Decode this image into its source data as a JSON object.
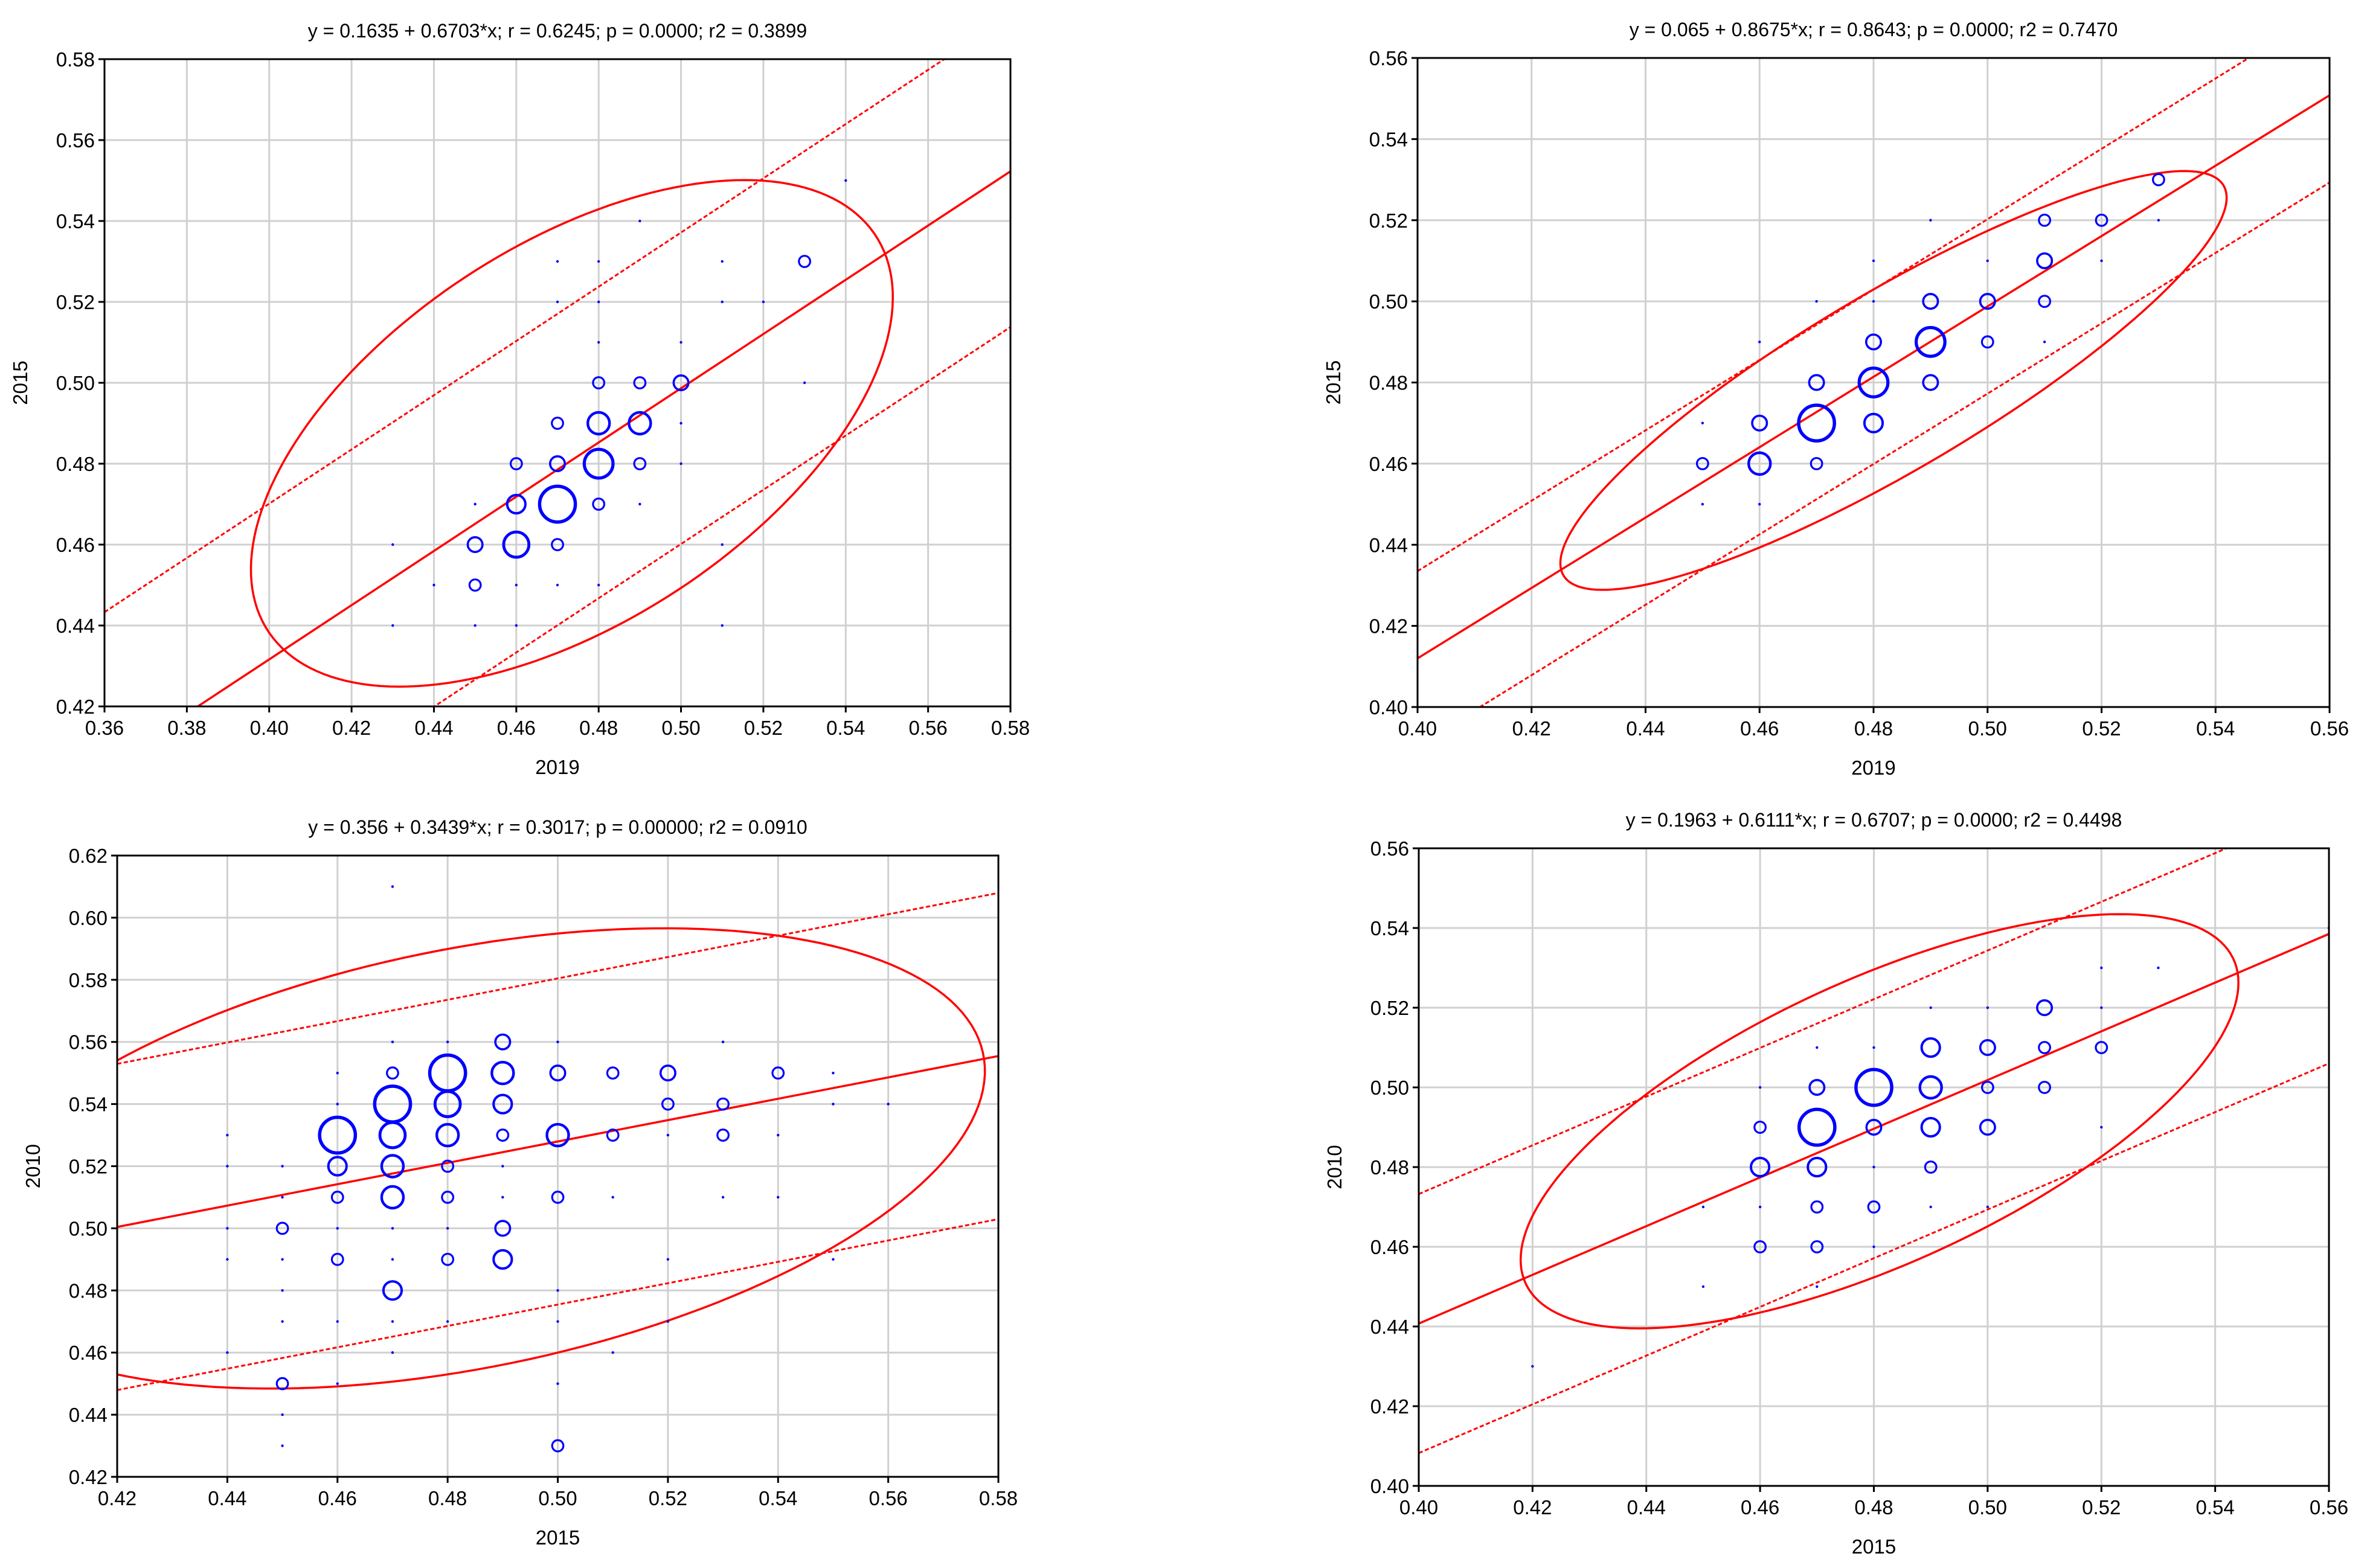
{
  "colors": {
    "points": "#0000ff",
    "fit": "#ff0000",
    "grid": "#d0d0d0"
  },
  "chart_data": [
    {
      "type": "scatter",
      "title": "y = 0.1635 + 0.6703*x;  r = 0.6245; p = 0.0000; r2 = 0.3899",
      "xlabel": "2019",
      "ylabel": "2015",
      "xlim": [
        0.36,
        0.58
      ],
      "ylim": [
        0.42,
        0.58
      ],
      "xticks": [
        "0.36",
        "0.38",
        "0.40",
        "0.42",
        "0.44",
        "0.46",
        "0.48",
        "0.50",
        "0.52",
        "0.54",
        "0.56",
        "0.58"
      ],
      "yticks": [
        "0.42",
        "0.44",
        "0.46",
        "0.48",
        "0.50",
        "0.52",
        "0.54",
        "0.56",
        "0.58"
      ],
      "regression": {
        "intercept": 0.1635,
        "slope": 0.6703
      },
      "prediction_band_offset": 0.0385,
      "ellipse": {
        "cx": 0.4735,
        "cy": 0.4875,
        "rx": 0.0885,
        "ry": 0.0465,
        "angle": 0.6703
      },
      "points": [
        {
          "x": 0.43,
          "y": 0.46,
          "n": 1
        },
        {
          "x": 0.43,
          "y": 0.44,
          "n": 1
        },
        {
          "x": 0.44,
          "y": 0.45,
          "n": 1
        },
        {
          "x": 0.45,
          "y": 0.47,
          "n": 1
        },
        {
          "x": 0.45,
          "y": 0.46,
          "n": 3
        },
        {
          "x": 0.45,
          "y": 0.45,
          "n": 2
        },
        {
          "x": 0.45,
          "y": 0.44,
          "n": 1
        },
        {
          "x": 0.46,
          "y": 0.48,
          "n": 2
        },
        {
          "x": 0.46,
          "y": 0.47,
          "n": 4
        },
        {
          "x": 0.46,
          "y": 0.46,
          "n": 6
        },
        {
          "x": 0.46,
          "y": 0.44,
          "n": 1
        },
        {
          "x": 0.46,
          "y": 0.45,
          "n": 1
        },
        {
          "x": 0.47,
          "y": 0.49,
          "n": 2
        },
        {
          "x": 0.47,
          "y": 0.48,
          "n": 3
        },
        {
          "x": 0.47,
          "y": 0.47,
          "n": 9
        },
        {
          "x": 0.47,
          "y": 0.46,
          "n": 2
        },
        {
          "x": 0.47,
          "y": 0.45,
          "n": 1
        },
        {
          "x": 0.47,
          "y": 0.52,
          "n": 1
        },
        {
          "x": 0.47,
          "y": 0.53,
          "n": 1
        },
        {
          "x": 0.48,
          "y": 0.5,
          "n": 2
        },
        {
          "x": 0.48,
          "y": 0.49,
          "n": 5
        },
        {
          "x": 0.48,
          "y": 0.48,
          "n": 7
        },
        {
          "x": 0.48,
          "y": 0.47,
          "n": 2
        },
        {
          "x": 0.48,
          "y": 0.51,
          "n": 1
        },
        {
          "x": 0.48,
          "y": 0.52,
          "n": 1
        },
        {
          "x": 0.48,
          "y": 0.53,
          "n": 1
        },
        {
          "x": 0.48,
          "y": 0.45,
          "n": 1
        },
        {
          "x": 0.49,
          "y": 0.5,
          "n": 2
        },
        {
          "x": 0.49,
          "y": 0.49,
          "n": 5
        },
        {
          "x": 0.49,
          "y": 0.48,
          "n": 2
        },
        {
          "x": 0.49,
          "y": 0.54,
          "n": 1
        },
        {
          "x": 0.49,
          "y": 0.47,
          "n": 1
        },
        {
          "x": 0.5,
          "y": 0.5,
          "n": 3
        },
        {
          "x": 0.5,
          "y": 0.51,
          "n": 1
        },
        {
          "x": 0.5,
          "y": 0.49,
          "n": 1
        },
        {
          "x": 0.5,
          "y": 0.48,
          "n": 1
        },
        {
          "x": 0.51,
          "y": 0.52,
          "n": 1
        },
        {
          "x": 0.51,
          "y": 0.53,
          "n": 1
        },
        {
          "x": 0.51,
          "y": 0.46,
          "n": 1
        },
        {
          "x": 0.51,
          "y": 0.44,
          "n": 1
        },
        {
          "x": 0.52,
          "y": 0.52,
          "n": 1
        },
        {
          "x": 0.53,
          "y": 0.53,
          "n": 2
        },
        {
          "x": 0.53,
          "y": 0.5,
          "n": 1
        },
        {
          "x": 0.54,
          "y": 0.55,
          "n": 1
        }
      ]
    },
    {
      "type": "scatter",
      "title": "y = 0.065 + 0.8675*x;  r = 0.8643; p = 0.0000; r2 = 0.7470",
      "xlabel": "2019",
      "ylabel": "2015",
      "xlim": [
        0.4,
        0.56
      ],
      "ylim": [
        0.4,
        0.56
      ],
      "xticks": [
        "0.40",
        "0.42",
        "0.44",
        "0.46",
        "0.48",
        "0.50",
        "0.52",
        "0.54",
        "0.56"
      ],
      "yticks": [
        "0.40",
        "0.42",
        "0.44",
        "0.46",
        "0.48",
        "0.50",
        "0.52",
        "0.54",
        "0.56"
      ],
      "regression": {
        "intercept": 0.065,
        "slope": 0.8675
      },
      "prediction_band_offset": 0.0215,
      "ellipse": {
        "cx": 0.4835,
        "cy": 0.4805,
        "rx": 0.0755,
        "ry": 0.0195,
        "angle": 0.8675
      },
      "points": [
        {
          "x": 0.45,
          "y": 0.46,
          "n": 2
        },
        {
          "x": 0.45,
          "y": 0.45,
          "n": 1
        },
        {
          "x": 0.45,
          "y": 0.47,
          "n": 1
        },
        {
          "x": 0.46,
          "y": 0.47,
          "n": 3
        },
        {
          "x": 0.46,
          "y": 0.46,
          "n": 5
        },
        {
          "x": 0.46,
          "y": 0.49,
          "n": 1
        },
        {
          "x": 0.46,
          "y": 0.45,
          "n": 1
        },
        {
          "x": 0.47,
          "y": 0.48,
          "n": 3
        },
        {
          "x": 0.47,
          "y": 0.47,
          "n": 9
        },
        {
          "x": 0.47,
          "y": 0.46,
          "n": 2
        },
        {
          "x": 0.47,
          "y": 0.5,
          "n": 1
        },
        {
          "x": 0.48,
          "y": 0.49,
          "n": 3
        },
        {
          "x": 0.48,
          "y": 0.48,
          "n": 7
        },
        {
          "x": 0.48,
          "y": 0.47,
          "n": 4
        },
        {
          "x": 0.48,
          "y": 0.51,
          "n": 1
        },
        {
          "x": 0.48,
          "y": 0.5,
          "n": 1
        },
        {
          "x": 0.49,
          "y": 0.5,
          "n": 3
        },
        {
          "x": 0.49,
          "y": 0.49,
          "n": 7
        },
        {
          "x": 0.49,
          "y": 0.48,
          "n": 3
        },
        {
          "x": 0.49,
          "y": 0.52,
          "n": 1
        },
        {
          "x": 0.5,
          "y": 0.5,
          "n": 3
        },
        {
          "x": 0.5,
          "y": 0.49,
          "n": 2
        },
        {
          "x": 0.5,
          "y": 0.51,
          "n": 1
        },
        {
          "x": 0.51,
          "y": 0.51,
          "n": 3
        },
        {
          "x": 0.51,
          "y": 0.52,
          "n": 2
        },
        {
          "x": 0.51,
          "y": 0.5,
          "n": 2
        },
        {
          "x": 0.51,
          "y": 0.49,
          "n": 1
        },
        {
          "x": 0.52,
          "y": 0.52,
          "n": 2
        },
        {
          "x": 0.52,
          "y": 0.51,
          "n": 1
        },
        {
          "x": 0.53,
          "y": 0.53,
          "n": 2
        },
        {
          "x": 0.53,
          "y": 0.52,
          "n": 1
        }
      ]
    },
    {
      "type": "scatter",
      "title": "y = 0.356 + 0.3439*x;  r = 0.3017; p = 0.00000; r2 = 0.0910",
      "xlabel": "2015",
      "ylabel": "2010",
      "xlim": [
        0.42,
        0.58
      ],
      "ylim": [
        0.42,
        0.62
      ],
      "xticks": [
        "0.42",
        "0.44",
        "0.46",
        "0.48",
        "0.50",
        "0.52",
        "0.54",
        "0.56",
        "0.58"
      ],
      "yticks": [
        "0.42",
        "0.44",
        "0.46",
        "0.48",
        "0.50",
        "0.52",
        "0.54",
        "0.56",
        "0.58",
        "0.60",
        "0.62"
      ],
      "regression": {
        "intercept": 0.356,
        "slope": 0.3439
      },
      "prediction_band_offset": 0.0525,
      "ellipse": {
        "cx": 0.4835,
        "cy": 0.5225,
        "rx": 0.1015,
        "ry": 0.0635,
        "angle": 0.55
      },
      "points": [
        {
          "x": 0.44,
          "y": 0.53,
          "n": 1
        },
        {
          "x": 0.44,
          "y": 0.52,
          "n": 1
        },
        {
          "x": 0.44,
          "y": 0.5,
          "n": 1
        },
        {
          "x": 0.44,
          "y": 0.49,
          "n": 1
        },
        {
          "x": 0.44,
          "y": 0.46,
          "n": 1
        },
        {
          "x": 0.45,
          "y": 0.52,
          "n": 1
        },
        {
          "x": 0.45,
          "y": 0.51,
          "n": 1
        },
        {
          "x": 0.45,
          "y": 0.5,
          "n": 2
        },
        {
          "x": 0.45,
          "y": 0.49,
          "n": 1
        },
        {
          "x": 0.45,
          "y": 0.48,
          "n": 1
        },
        {
          "x": 0.45,
          "y": 0.47,
          "n": 1
        },
        {
          "x": 0.45,
          "y": 0.45,
          "n": 2
        },
        {
          "x": 0.45,
          "y": 0.44,
          "n": 1
        },
        {
          "x": 0.45,
          "y": 0.43,
          "n": 1
        },
        {
          "x": 0.46,
          "y": 0.53,
          "n": 9
        },
        {
          "x": 0.46,
          "y": 0.52,
          "n": 4
        },
        {
          "x": 0.46,
          "y": 0.51,
          "n": 2
        },
        {
          "x": 0.46,
          "y": 0.5,
          "n": 1
        },
        {
          "x": 0.46,
          "y": 0.49,
          "n": 2
        },
        {
          "x": 0.46,
          "y": 0.47,
          "n": 1
        },
        {
          "x": 0.46,
          "y": 0.45,
          "n": 1
        },
        {
          "x": 0.46,
          "y": 0.54,
          "n": 1
        },
        {
          "x": 0.46,
          "y": 0.55,
          "n": 1
        },
        {
          "x": 0.47,
          "y": 0.54,
          "n": 9
        },
        {
          "x": 0.47,
          "y": 0.53,
          "n": 6
        },
        {
          "x": 0.47,
          "y": 0.52,
          "n": 5
        },
        {
          "x": 0.47,
          "y": 0.51,
          "n": 5
        },
        {
          "x": 0.47,
          "y": 0.55,
          "n": 2
        },
        {
          "x": 0.47,
          "y": 0.48,
          "n": 4
        },
        {
          "x": 0.47,
          "y": 0.49,
          "n": 1
        },
        {
          "x": 0.47,
          "y": 0.5,
          "n": 1
        },
        {
          "x": 0.47,
          "y": 0.47,
          "n": 1
        },
        {
          "x": 0.47,
          "y": 0.46,
          "n": 1
        },
        {
          "x": 0.47,
          "y": 0.61,
          "n": 1
        },
        {
          "x": 0.47,
          "y": 0.56,
          "n": 1
        },
        {
          "x": 0.48,
          "y": 0.55,
          "n": 9
        },
        {
          "x": 0.48,
          "y": 0.54,
          "n": 6
        },
        {
          "x": 0.48,
          "y": 0.53,
          "n": 5
        },
        {
          "x": 0.48,
          "y": 0.52,
          "n": 2
        },
        {
          "x": 0.48,
          "y": 0.51,
          "n": 2
        },
        {
          "x": 0.48,
          "y": 0.49,
          "n": 2
        },
        {
          "x": 0.48,
          "y": 0.5,
          "n": 1
        },
        {
          "x": 0.48,
          "y": 0.56,
          "n": 1
        },
        {
          "x": 0.48,
          "y": 0.47,
          "n": 1
        },
        {
          "x": 0.49,
          "y": 0.56,
          "n": 3
        },
        {
          "x": 0.49,
          "y": 0.55,
          "n": 5
        },
        {
          "x": 0.49,
          "y": 0.54,
          "n": 4
        },
        {
          "x": 0.49,
          "y": 0.53,
          "n": 2
        },
        {
          "x": 0.49,
          "y": 0.5,
          "n": 3
        },
        {
          "x": 0.49,
          "y": 0.49,
          "n": 4
        },
        {
          "x": 0.49,
          "y": 0.52,
          "n": 1
        },
        {
          "x": 0.49,
          "y": 0.51,
          "n": 1
        },
        {
          "x": 0.5,
          "y": 0.55,
          "n": 3
        },
        {
          "x": 0.5,
          "y": 0.53,
          "n": 5
        },
        {
          "x": 0.5,
          "y": 0.51,
          "n": 2
        },
        {
          "x": 0.5,
          "y": 0.48,
          "n": 1
        },
        {
          "x": 0.5,
          "y": 0.47,
          "n": 1
        },
        {
          "x": 0.5,
          "y": 0.45,
          "n": 1
        },
        {
          "x": 0.5,
          "y": 0.43,
          "n": 2
        },
        {
          "x": 0.5,
          "y": 0.56,
          "n": 1
        },
        {
          "x": 0.51,
          "y": 0.55,
          "n": 2
        },
        {
          "x": 0.51,
          "y": 0.53,
          "n": 2
        },
        {
          "x": 0.51,
          "y": 0.51,
          "n": 1
        },
        {
          "x": 0.51,
          "y": 0.46,
          "n": 1
        },
        {
          "x": 0.52,
          "y": 0.55,
          "n": 3
        },
        {
          "x": 0.52,
          "y": 0.54,
          "n": 2
        },
        {
          "x": 0.52,
          "y": 0.53,
          "n": 1
        },
        {
          "x": 0.52,
          "y": 0.49,
          "n": 1
        },
        {
          "x": 0.52,
          "y": 0.47,
          "n": 1
        },
        {
          "x": 0.53,
          "y": 0.56,
          "n": 1
        },
        {
          "x": 0.53,
          "y": 0.54,
          "n": 2
        },
        {
          "x": 0.53,
          "y": 0.53,
          "n": 2
        },
        {
          "x": 0.53,
          "y": 0.51,
          "n": 1
        },
        {
          "x": 0.54,
          "y": 0.55,
          "n": 2
        },
        {
          "x": 0.54,
          "y": 0.53,
          "n": 1
        },
        {
          "x": 0.54,
          "y": 0.51,
          "n": 1
        },
        {
          "x": 0.55,
          "y": 0.55,
          "n": 1
        },
        {
          "x": 0.55,
          "y": 0.54,
          "n": 1
        },
        {
          "x": 0.55,
          "y": 0.49,
          "n": 1
        },
        {
          "x": 0.56,
          "y": 0.54,
          "n": 1
        }
      ]
    },
    {
      "type": "scatter",
      "title": "y = 0.1963 + 0.6111*x;  r = 0.6707; p = 0.0000; r2 = 0.4498",
      "xlabel": "2015",
      "ylabel": "2010",
      "xlim": [
        0.4,
        0.56
      ],
      "ylim": [
        0.4,
        0.56
      ],
      "xticks": [
        "0.40",
        "0.42",
        "0.44",
        "0.46",
        "0.48",
        "0.50",
        "0.52",
        "0.54",
        "0.56"
      ],
      "yticks": [
        "0.40",
        "0.42",
        "0.44",
        "0.46",
        "0.48",
        "0.50",
        "0.52",
        "0.54",
        "0.56"
      ],
      "regression": {
        "intercept": 0.1963,
        "slope": 0.6111
      },
      "prediction_band_offset": 0.0325,
      "ellipse": {
        "cx": 0.481,
        "cy": 0.4915,
        "rx": 0.075,
        "ry": 0.0325,
        "angle": 0.75
      },
      "points": [
        {
          "x": 0.42,
          "y": 0.43,
          "n": 1
        },
        {
          "x": 0.45,
          "y": 0.45,
          "n": 1
        },
        {
          "x": 0.45,
          "y": 0.47,
          "n": 1
        },
        {
          "x": 0.46,
          "y": 0.49,
          "n": 2
        },
        {
          "x": 0.46,
          "y": 0.48,
          "n": 4
        },
        {
          "x": 0.46,
          "y": 0.46,
          "n": 2
        },
        {
          "x": 0.46,
          "y": 0.47,
          "n": 1
        },
        {
          "x": 0.46,
          "y": 0.5,
          "n": 1
        },
        {
          "x": 0.47,
          "y": 0.5,
          "n": 3
        },
        {
          "x": 0.47,
          "y": 0.49,
          "n": 9
        },
        {
          "x": 0.47,
          "y": 0.48,
          "n": 4
        },
        {
          "x": 0.47,
          "y": 0.47,
          "n": 2
        },
        {
          "x": 0.47,
          "y": 0.46,
          "n": 2
        },
        {
          "x": 0.47,
          "y": 0.45,
          "n": 1
        },
        {
          "x": 0.47,
          "y": 0.51,
          "n": 1
        },
        {
          "x": 0.48,
          "y": 0.5,
          "n": 9
        },
        {
          "x": 0.48,
          "y": 0.49,
          "n": 3
        },
        {
          "x": 0.48,
          "y": 0.48,
          "n": 1
        },
        {
          "x": 0.48,
          "y": 0.47,
          "n": 2
        },
        {
          "x": 0.48,
          "y": 0.46,
          "n": 1
        },
        {
          "x": 0.48,
          "y": 0.51,
          "n": 1
        },
        {
          "x": 0.49,
          "y": 0.51,
          "n": 4
        },
        {
          "x": 0.49,
          "y": 0.5,
          "n": 5
        },
        {
          "x": 0.49,
          "y": 0.49,
          "n": 4
        },
        {
          "x": 0.49,
          "y": 0.48,
          "n": 2
        },
        {
          "x": 0.49,
          "y": 0.47,
          "n": 1
        },
        {
          "x": 0.49,
          "y": 0.52,
          "n": 1
        },
        {
          "x": 0.5,
          "y": 0.51,
          "n": 3
        },
        {
          "x": 0.5,
          "y": 0.5,
          "n": 2
        },
        {
          "x": 0.5,
          "y": 0.49,
          "n": 3
        },
        {
          "x": 0.5,
          "y": 0.52,
          "n": 1
        },
        {
          "x": 0.5,
          "y": 0.47,
          "n": 1
        },
        {
          "x": 0.51,
          "y": 0.52,
          "n": 3
        },
        {
          "x": 0.51,
          "y": 0.51,
          "n": 2
        },
        {
          "x": 0.51,
          "y": 0.5,
          "n": 2
        },
        {
          "x": 0.52,
          "y": 0.53,
          "n": 1
        },
        {
          "x": 0.52,
          "y": 0.52,
          "n": 1
        },
        {
          "x": 0.52,
          "y": 0.51,
          "n": 2
        },
        {
          "x": 0.52,
          "y": 0.49,
          "n": 1
        },
        {
          "x": 0.53,
          "y": 0.53,
          "n": 1
        },
        {
          "x": 0.56,
          "y": 0.54,
          "n": 1
        }
      ]
    }
  ]
}
